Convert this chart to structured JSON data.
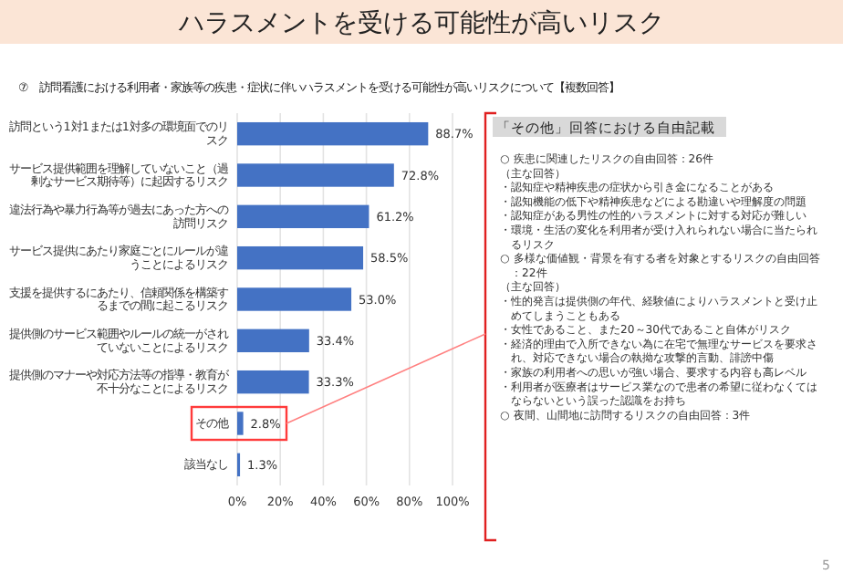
{
  "chart_data": [
    {
      "type": "bar",
      "orientation": "horizontal",
      "title": "ハラスメントを受ける可能性が高いリスク",
      "subtitle": "⑦　訪問看護における利用者・家族等の疾患・症状に伴いハラスメントを受ける可能性が高いリスクについて【複数回答】",
      "categories": [
        "訪問という1対1または1対多の環境面でのリスク",
        "サービス提供範囲を理解していないこと（過剰なサービス期待等）に起因するリスク",
        "違法行為や暴力行為等が過去にあった方への訪問リスク",
        "サービス提供にあたり家庭ごとにルールが違うことによるリスク",
        "支援を提供するにあたり、信頼関係を構築するまでの間に起こるリスク",
        "提供側のサービス範囲やルールの統一がされていないことによるリスク",
        "提供側のマナーや対応方法等の指導・教育が不十分なことによるリスク",
        "その他",
        "該当なし"
      ],
      "values": [
        88.7,
        72.8,
        61.2,
        58.5,
        53.0,
        33.4,
        33.3,
        2.8,
        1.3
      ],
      "value_labels": [
        "88.7%",
        "72.8%",
        "61.2%",
        "58.5%",
        "53.0%",
        "33.4%",
        "33.3%",
        "2.8%",
        "1.3%"
      ],
      "color": "#4472c4",
      "xlim": [
        0,
        100
      ],
      "xticks": [
        {
          "value": 0,
          "label": "0%"
        },
        {
          "value": 20,
          "label": "20%"
        },
        {
          "value": 40,
          "label": "40%"
        },
        {
          "value": 60,
          "label": "60%"
        },
        {
          "value": 80,
          "label": "80%"
        },
        {
          "value": 100,
          "label": "100%"
        }
      ],
      "grid": "x"
    },
    {
      "type": "other",
      "title": "「その他」回答における自由記載",
      "annotations": [
        "○ 疾患に関連したリスクの自由回答：26件",
        "（主な回答）",
        "・認知症や精神疾患の症状から引き金になることがある",
        "・認知機能の低下や精神疾患などによる勘違いや理解度の問題",
        "・認知症がある男性の性的ハラスメントに対する対応が難しい",
        "・環境・生活の変化を利用者が受け入れられない場合に当たられるリスク",
        "○ 多様な価値観・背景を有する者を対象とするリスクの自由回答：22件",
        "（主な回答）",
        "・性的発言は提供側の年代、経験値によりハラスメントと受け止めてしまうこともある",
        "・女性であること、また20～30代であること自体がリスク",
        "・経済的理由で入所できない為に在宅で無理なサービスを要求され、対応できない場合の執拗な攻撃的言動、誹謗中傷",
        "・家族の利用者への思いが強い場合、要求する内容も高レベル",
        "・利用者が医療者はサービス業なので患者の希望に従わなくてはならないという誤った認識をお持ち",
        "○ 夜間、山間地に訪問するリスクの自由回答：3件",
        "5"
      ]
    }
  ]
}
